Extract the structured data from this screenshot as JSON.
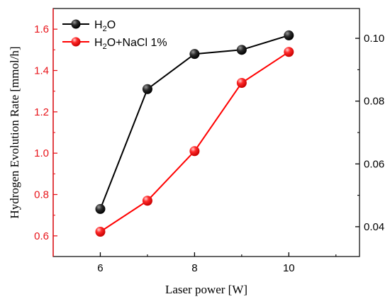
{
  "chart_data": {
    "type": "line",
    "xlabel": "Laser power [W]",
    "ylabel": "Hydrogen Evolution Rate [mmol/h]",
    "x": [
      6,
      7,
      8,
      9,
      10
    ],
    "xlim": [
      5,
      11.5
    ],
    "xticks": [
      "6",
      "8",
      "10"
    ],
    "xtick_values": [
      6,
      8,
      10
    ],
    "ylim_left": [
      0.5,
      1.7
    ],
    "yticks_left": [
      "0.6",
      "0.8",
      "1.0",
      "1.2",
      "1.4",
      "1.6"
    ],
    "ytick_values_left": [
      0.6,
      0.8,
      1.0,
      1.2,
      1.4,
      1.6
    ],
    "ylim_right": [
      0.0305,
      0.1095
    ],
    "yticks_right": [
      "0.04",
      "0.06",
      "0.08",
      "0.10"
    ],
    "ytick_values_right": [
      0.04,
      0.06,
      0.08,
      0.1
    ],
    "left_axis_color": "#e8151b",
    "legend_position": "top-left",
    "series": [
      {
        "name": "H2O",
        "legend_label": {
          "base": "H",
          "sub": "2",
          "rest": "O"
        },
        "color": "#000000",
        "values": [
          0.73,
          1.31,
          1.48,
          1.5,
          1.57
        ]
      },
      {
        "name": "H2O+NaCl 1%",
        "legend_label": {
          "base": "H",
          "sub": "2",
          "rest": "O+NaCl 1%"
        },
        "color": "#ff0000",
        "values": [
          0.62,
          0.77,
          1.01,
          1.34,
          1.49
        ]
      }
    ]
  }
}
